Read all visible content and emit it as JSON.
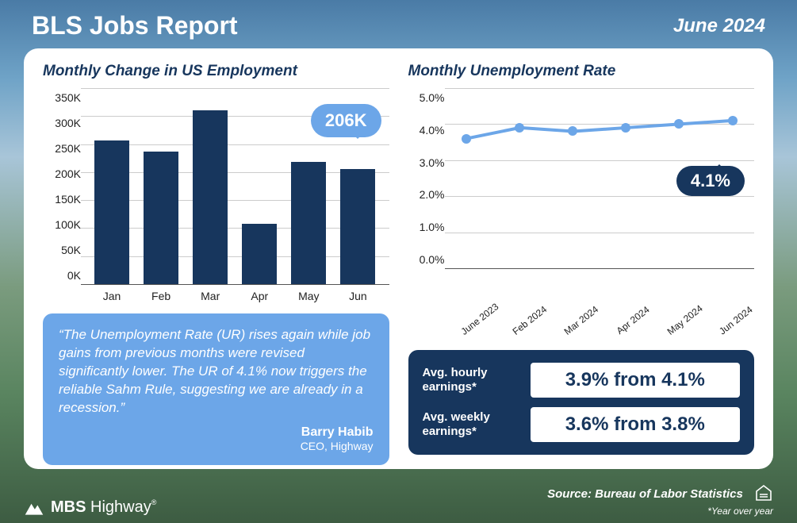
{
  "header": {
    "title": "BLS Jobs Report",
    "date": "June 2024"
  },
  "bar_chart": {
    "type": "bar",
    "title": "Monthly Change in US Employment",
    "categories": [
      "Jan",
      "Feb",
      "Mar",
      "Apr",
      "May",
      "Jun"
    ],
    "values": [
      256,
      236,
      310,
      108,
      218,
      206
    ],
    "bar_color": "#17365d",
    "ylim": [
      0,
      350
    ],
    "ytick_step": 50,
    "ytick_labels": [
      "350K",
      "300K",
      "250K",
      "200K",
      "150K",
      "100K",
      "50K",
      "0K"
    ],
    "grid_color": "#cccccc",
    "callout": {
      "text": "206K",
      "bg": "#6ca6e8",
      "color": "#ffffff"
    },
    "title_color": "#17365d",
    "label_fontsize": 14
  },
  "line_chart": {
    "type": "line",
    "title": "Monthly Unemployment Rate",
    "categories": [
      "June 2023",
      "Feb 2024",
      "Mar 2024",
      "Apr 2024",
      "May 2024",
      "Jun 2024"
    ],
    "values": [
      3.6,
      3.9,
      3.8,
      3.9,
      4.0,
      4.1
    ],
    "line_color": "#6ca6e8",
    "line_width": 4,
    "marker_size": 6,
    "ylim": [
      0,
      5
    ],
    "ytick_step": 1,
    "ytick_labels": [
      "5.0%",
      "4.0%",
      "3.0%",
      "2.0%",
      "1.0%",
      "0.0%"
    ],
    "grid_color": "#cccccc",
    "callout": {
      "text": "4.1%",
      "bg": "#17365d",
      "color": "#ffffff"
    },
    "title_color": "#17365d"
  },
  "quote": {
    "text": "“The Unemployment Rate (UR) rises again while job gains from previous months were revised significantly lower. The UR of 4.1% now triggers the reliable Sahm Rule, suggesting we are already in a recession.”",
    "author": "Barry Habib",
    "role": "CEO, Highway",
    "bg": "#6ca6e8",
    "color": "#ffffff"
  },
  "earnings": {
    "bg": "#17365d",
    "color": "#ffffff",
    "value_bg": "#ffffff",
    "value_color": "#17365d",
    "rows": [
      {
        "label": "Avg. hourly earnings*",
        "value": "3.9% from 4.1%"
      },
      {
        "label": "Avg. weekly earnings*",
        "value": "3.6% from 3.8%"
      }
    ]
  },
  "footer": {
    "brand_prefix": "MBS",
    "brand_suffix": "Highway",
    "source": "Source: Bureau of Labor Statistics",
    "note": "*Year over year"
  }
}
